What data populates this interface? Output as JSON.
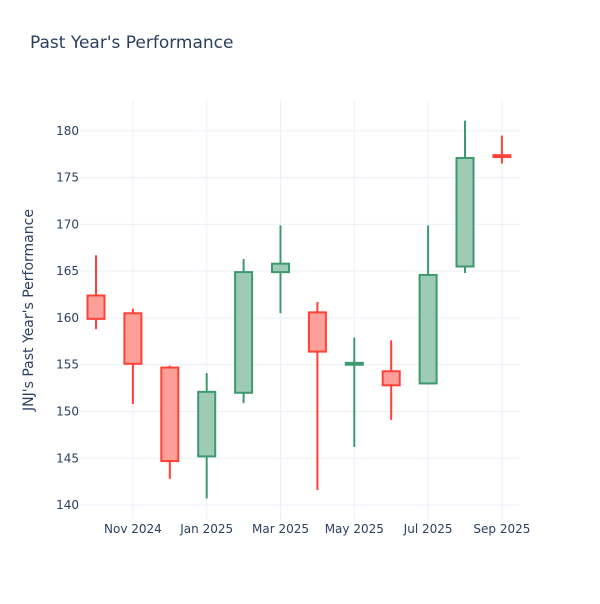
{
  "chart_data": {
    "type": "candlestick",
    "title": "Past Year's Performance",
    "xlabel": "",
    "ylabel": "JNJ's Past Year's Performance",
    "ylim": [
      138.4,
      183.3
    ],
    "grid": true,
    "yticks": [
      140,
      145,
      150,
      155,
      160,
      165,
      170,
      175,
      180
    ],
    "xtick_labels": [
      {
        "index": 1,
        "label": "Nov 2024"
      },
      {
        "index": 3,
        "label": "Jan 2025"
      },
      {
        "index": 5,
        "label": "Mar 2025"
      },
      {
        "index": 7,
        "label": "May 2025"
      },
      {
        "index": 9,
        "label": "Jul 2025"
      },
      {
        "index": 11,
        "label": "Sep 2025"
      }
    ],
    "colors": {
      "increasing": "#3d9970",
      "increasing_fill": "#9ecbb5",
      "decreasing": "#ff4136",
      "decreasing_fill": "#ff9f9a"
    },
    "candles": [
      {
        "month": "Oct 2024",
        "open": 162.4,
        "high": 166.7,
        "low": 158.8,
        "close": 159.9
      },
      {
        "month": "Nov 2024",
        "open": 160.5,
        "high": 161.0,
        "low": 150.8,
        "close": 155.1
      },
      {
        "month": "Dec 2024",
        "open": 154.7,
        "high": 154.9,
        "low": 142.8,
        "close": 144.7
      },
      {
        "month": "Jan 2025",
        "open": 145.2,
        "high": 154.1,
        "low": 140.7,
        "close": 152.1
      },
      {
        "month": "Feb 2025",
        "open": 152.0,
        "high": 166.3,
        "low": 150.9,
        "close": 164.9
      },
      {
        "month": "Mar 2025",
        "open": 164.9,
        "high": 169.9,
        "low": 160.5,
        "close": 165.8
      },
      {
        "month": "Apr 2025",
        "open": 160.6,
        "high": 161.7,
        "low": 141.6,
        "close": 156.4
      },
      {
        "month": "May 2025",
        "open": 155.0,
        "high": 157.9,
        "low": 146.2,
        "close": 155.2
      },
      {
        "month": "Jun 2025",
        "open": 154.3,
        "high": 157.6,
        "low": 149.1,
        "close": 152.8
      },
      {
        "month": "Jul 2025",
        "open": 153.0,
        "high": 169.9,
        "low": 152.9,
        "close": 164.6
      },
      {
        "month": "Aug 2025",
        "open": 165.5,
        "high": 181.1,
        "low": 164.8,
        "close": 177.1
      },
      {
        "month": "Sep 2025",
        "open": 177.4,
        "high": 179.5,
        "low": 176.5,
        "close": 177.2
      }
    ]
  }
}
